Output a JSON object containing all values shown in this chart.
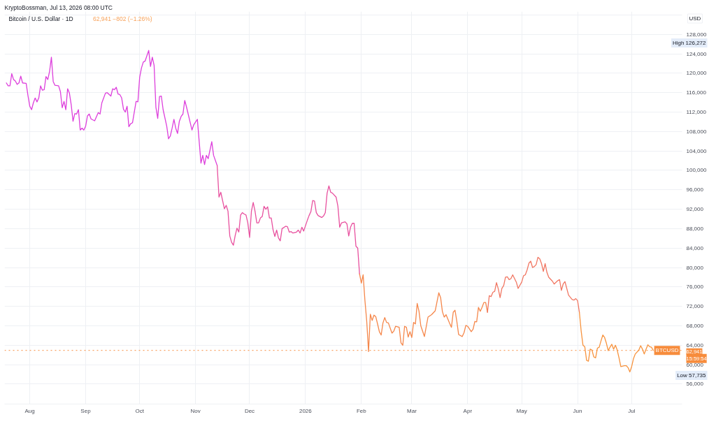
{
  "chart_data": {
    "type": "line",
    "title": "Bitcoin / U.S. Dollar · 1D",
    "subtitle": "62,941 −802 (−1.26%)",
    "ylabel": "USD",
    "annotations": [
      "KryptoBossman, Jul 13, 2026 08:00 UTC",
      "High 126,272",
      "Low 57,735",
      "62,941",
      "15:59:54"
    ],
    "xlim": [
      "2025-07-18",
      "2026-07-29"
    ],
    "xticks": [
      {
        "value": "2025-08-01",
        "label": "Aug"
      },
      {
        "value": "2025-09-01",
        "label": "Sep"
      },
      {
        "value": "2025-10-01",
        "label": "Oct"
      },
      {
        "value": "2025-11-01",
        "label": "Nov"
      },
      {
        "value": "2025-12-01",
        "label": "Dec"
      },
      {
        "value": "2026-01-01",
        "label": "2026"
      },
      {
        "value": "2026-02-01",
        "label": "Feb"
      },
      {
        "value": "2026-03-01",
        "label": "Mar"
      },
      {
        "value": "2026-04-01",
        "label": "Apr"
      },
      {
        "value": "2026-05-01",
        "label": "May"
      },
      {
        "value": "2026-06-01",
        "label": "Jun"
      },
      {
        "value": "2026-07-01",
        "label": "Jul"
      }
    ],
    "ylim": [
      51900,
      132700
    ],
    "yticks": [
      {
        "value": 56000,
        "label": "56,000"
      },
      {
        "value": 60000,
        "label": "60,000"
      },
      {
        "value": 64000,
        "label": "64,000"
      },
      {
        "value": 68000,
        "label": "68,000"
      },
      {
        "value": 72000,
        "label": "72,000"
      },
      {
        "value": 76000,
        "label": "76,000"
      },
      {
        "value": 80000,
        "label": "80,000"
      },
      {
        "value": 84000,
        "label": "84,000"
      },
      {
        "value": 88000,
        "label": "88,000"
      },
      {
        "value": 92000,
        "label": "92,000"
      },
      {
        "value": 96000,
        "label": "96,000"
      },
      {
        "value": 100000,
        "label": "100,000"
      },
      {
        "value": 104000,
        "label": "104,000"
      },
      {
        "value": 108000,
        "label": "108,000"
      },
      {
        "value": 112000,
        "label": "112,000"
      },
      {
        "value": 116000,
        "label": "116,000"
      },
      {
        "value": 120000,
        "label": "120,000"
      },
      {
        "value": 124000,
        "label": "124,000"
      },
      {
        "value": 128000,
        "label": "128,000"
      },
      {
        "value": 132000,
        "label": null
      }
    ],
    "grid": true,
    "ref_lines": [
      {
        "axis": "y",
        "value": 62941,
        "label": "BTCUSD",
        "color": "#f78c3c",
        "line_style": "dotted"
      }
    ],
    "series": [
      {
        "color": "#dd3fdc",
        "x": [
          "2025-07-19",
          "2025-07-20",
          "2025-07-21",
          "2025-07-22",
          "2025-07-23",
          "2025-07-24",
          "2025-07-25",
          "2025-07-26",
          "2025-07-27",
          "2025-07-28",
          "2025-07-30",
          "2025-07-31",
          "2025-08-01",
          "2025-08-02",
          "2025-08-03",
          "2025-08-04",
          "2025-08-05",
          "2025-08-06",
          "2025-08-07",
          "2025-08-08",
          "2025-08-09",
          "2025-08-10",
          "2025-08-11",
          "2025-08-12",
          "2025-08-13",
          "2025-08-14",
          "2025-08-15",
          "2025-08-17",
          "2025-08-18",
          "2025-08-19",
          "2025-08-20",
          "2025-08-21",
          "2025-08-22",
          "2025-08-23",
          "2025-08-24",
          "2025-08-25",
          "2025-08-26",
          "2025-08-27",
          "2025-08-28",
          "2025-08-29",
          "2025-08-30",
          "2025-08-31",
          "2025-09-01",
          "2025-09-02",
          "2025-09-03",
          "2025-09-04",
          "2025-09-06",
          "2025-09-08",
          "2025-09-09",
          "2025-09-10",
          "2025-09-12",
          "2025-09-13",
          "2025-09-15",
          "2025-09-16",
          "2025-09-17",
          "2025-09-18",
          "2025-09-19",
          "2025-09-20",
          "2025-09-21",
          "2025-09-22",
          "2025-09-23",
          "2025-09-24",
          "2025-09-25",
          "2025-09-26",
          "2025-09-27",
          "2025-09-29",
          "2025-09-30",
          "2025-10-01",
          "2025-10-02",
          "2025-10-03",
          "2025-10-04",
          "2025-10-06",
          "2025-10-07",
          "2025-10-08",
          "2025-10-09",
          "2025-10-10",
          "2025-10-11",
          "2025-10-12",
          "2025-10-13",
          "2025-10-14",
          "2025-10-16",
          "2025-10-17",
          "2025-10-18",
          "2025-10-19",
          "2025-10-20",
          "2025-10-21",
          "2025-10-22",
          "2025-10-23",
          "2025-10-24",
          "2025-10-25",
          "2025-10-26",
          "2025-10-27",
          "2025-10-29",
          "2025-10-30",
          "2025-10-31",
          "2025-11-02",
          "2025-11-04",
          "2025-11-05",
          "2025-11-06",
          "2025-11-07",
          "2025-11-08",
          "2025-11-10",
          "2025-11-11",
          "2025-11-13"
        ],
        "values": [
          118000,
          117400,
          117400,
          119900,
          118700,
          118400,
          117700,
          118000,
          119400,
          118000,
          117900,
          115400,
          113200,
          112500,
          113900,
          114900,
          114100,
          114900,
          117400,
          116500,
          116600,
          119300,
          118700,
          120400,
          123300,
          118300,
          117500,
          117400,
          116200,
          112900,
          114200,
          112500,
          116800,
          115900,
          113500,
          110100,
          111700,
          111600,
          112500,
          108300,
          108700,
          108300,
          109100,
          111200,
          111600,
          110600,
          110200,
          111900,
          111600,
          113900,
          115900,
          116000,
          115300,
          116800,
          116600,
          117100,
          115700,
          115600,
          114900,
          112600,
          112000,
          113200,
          109000,
          109600,
          109800,
          114200,
          114100,
          119200,
          121100,
          122300,
          122500,
          124700,
          121400,
          123300,
          121600,
          113000,
          110700,
          115200,
          115300,
          112500,
          109100,
          106500,
          107100,
          108700,
          110500,
          108700,
          107600,
          110100,
          111100,
          111600,
          114400,
          113000,
          109900,
          108300,
          109400,
          110500,
          101500,
          103100,
          101200,
          103100,
          102400,
          105900,
          103100,
          101000
        ]
      },
      {
        "color": "#e8519f",
        "x": [
          "2025-11-13",
          "2025-11-14",
          "2025-11-15",
          "2025-11-17",
          "2025-11-18",
          "2025-11-19",
          "2025-11-20",
          "2025-11-21",
          "2025-11-22",
          "2025-11-23",
          "2025-11-24",
          "2025-11-25",
          "2025-11-26",
          "2025-11-27",
          "2025-11-28",
          "2025-11-29",
          "2025-11-30",
          "2025-12-01",
          "2025-12-02",
          "2025-12-03",
          "2025-12-04",
          "2025-12-05",
          "2025-12-06",
          "2025-12-07",
          "2025-12-08",
          "2025-12-09",
          "2025-12-10",
          "2025-12-11",
          "2025-12-12",
          "2025-12-13",
          "2025-12-14",
          "2025-12-15",
          "2025-12-16",
          "2025-12-17",
          "2025-12-18",
          "2025-12-19",
          "2025-12-21",
          "2025-12-22",
          "2025-12-23",
          "2025-12-24",
          "2025-12-25",
          "2025-12-27",
          "2025-12-28",
          "2025-12-29",
          "2025-12-30",
          "2025-12-31",
          "2026-01-02",
          "2026-01-03",
          "2026-01-04",
          "2026-01-05",
          "2026-01-06",
          "2026-01-07",
          "2026-01-08",
          "2026-01-10",
          "2026-01-11",
          "2026-01-12",
          "2026-01-13",
          "2026-01-14",
          "2026-01-15",
          "2026-01-16",
          "2026-01-18",
          "2026-01-19",
          "2026-01-20",
          "2026-01-21",
          "2026-01-23",
          "2026-01-24",
          "2026-01-25",
          "2026-01-26",
          "2026-01-27",
          "2026-01-28",
          "2026-01-29",
          "2026-01-30",
          "2026-01-31"
        ],
        "values": [
          101000,
          94500,
          95500,
          92100,
          92800,
          91600,
          86500,
          85200,
          84600,
          86600,
          88100,
          87300,
          90800,
          91300,
          91000,
          90800,
          89200,
          86200,
          91600,
          93400,
          91600,
          89200,
          89200,
          90200,
          90500,
          92600,
          92000,
          92500,
          90200,
          90200,
          87800,
          86400,
          87700,
          86100,
          85500,
          88000,
          88500,
          88400,
          87300,
          87400,
          87100,
          87300,
          87700,
          87100,
          88300,
          87500,
          89700,
          90700,
          91500,
          93800,
          93700,
          91300,
          90700,
          90300,
          90600,
          91300,
          95300,
          96800,
          95500,
          95300,
          94500,
          92600,
          88300,
          89200,
          89400,
          89000,
          86500,
          88300,
          89100,
          89100,
          84400,
          84000,
          78700
        ]
      },
      {
        "color": "#f5874b",
        "x": [
          "2026-01-31",
          "2026-02-01",
          "2026-02-02",
          "2026-02-03",
          "2026-02-04",
          "2026-02-05",
          "2026-02-06",
          "2026-02-07",
          "2026-02-08",
          "2026-02-09",
          "2026-02-10",
          "2026-02-11",
          "2026-02-12",
          "2026-02-13",
          "2026-02-14",
          "2026-02-15",
          "2026-02-16",
          "2026-02-18",
          "2026-02-19",
          "2026-02-20",
          "2026-02-22",
          "2026-02-23",
          "2026-02-24",
          "2026-02-25",
          "2026-02-26",
          "2026-02-27",
          "2026-02-28",
          "2026-03-01",
          "2026-03-02",
          "2026-03-03",
          "2026-03-04",
          "2026-03-05",
          "2026-03-06",
          "2026-03-08",
          "2026-03-10",
          "2026-03-12",
          "2026-03-14",
          "2026-03-16",
          "2026-03-17",
          "2026-03-18",
          "2026-03-19",
          "2026-03-20",
          "2026-03-22",
          "2026-03-23",
          "2026-03-24",
          "2026-03-25",
          "2026-03-26",
          "2026-03-27",
          "2026-03-29",
          "2026-03-30",
          "2026-03-31",
          "2026-04-01",
          "2026-04-03",
          "2026-04-04",
          "2026-04-05",
          "2026-04-06",
          "2026-04-07",
          "2026-04-08",
          "2026-04-09",
          "2026-04-10",
          "2026-04-11",
          "2026-04-12"
        ],
        "values": [
          78700,
          76800,
          78500,
          73200,
          68900,
          62700,
          70400,
          69100,
          70200,
          69900,
          68400,
          66800,
          66100,
          68600,
          69700,
          68700,
          68600,
          66500,
          66900,
          67900,
          67700,
          64500,
          64000,
          67900,
          67700,
          65700,
          66800,
          65600,
          68700,
          68400,
          72600,
          71000,
          68000,
          65800,
          69800,
          70300,
          71100,
          74800,
          73800,
          70900,
          69800,
          70300,
          68500,
          67700,
          70800,
          71200,
          68900,
          66200,
          65800,
          66600,
          68100,
          67900,
          66800,
          67300,
          68900,
          68800,
          71800,
          71000,
          71800,
          72800,
          72800,
          70800
        ]
      },
      {
        "color": "#f17763",
        "x": [
          "2026-04-12",
          "2026-04-13",
          "2026-04-14",
          "2026-04-15",
          "2026-04-16",
          "2026-04-17",
          "2026-04-18",
          "2026-04-19",
          "2026-04-20",
          "2026-04-21",
          "2026-04-22",
          "2026-04-23",
          "2026-04-24",
          "2026-04-25",
          "2026-04-26",
          "2026-04-28",
          "2026-04-29",
          "2026-05-01",
          "2026-05-02",
          "2026-05-03",
          "2026-05-04",
          "2026-05-05",
          "2026-05-06",
          "2026-05-07",
          "2026-05-08",
          "2026-05-09",
          "2026-05-10",
          "2026-05-11",
          "2026-05-12",
          "2026-05-13",
          "2026-05-14",
          "2026-05-15",
          "2026-05-16",
          "2026-05-18",
          "2026-05-19",
          "2026-05-21",
          "2026-05-22",
          "2026-05-23",
          "2026-05-24",
          "2026-05-25",
          "2026-05-27",
          "2026-05-29",
          "2026-05-30",
          "2026-05-31",
          "2026-06-01",
          "2026-06-02"
        ],
        "values": [
          70800,
          74200,
          74000,
          74900,
          75100,
          76900,
          75600,
          73800,
          75700,
          76300,
          78000,
          78100,
          77500,
          77700,
          78500,
          77000,
          75700,
          77000,
          78300,
          78500,
          79500,
          80900,
          81300,
          80000,
          80200,
          80600,
          82100,
          81800,
          80800,
          79200,
          80800,
          79000,
          78000,
          77200,
          76600,
          77300,
          77500,
          75300,
          76600,
          77100,
          74300,
          73400,
          73300,
          73600,
          73200,
          70800
        ]
      },
      {
        "color": "#f7933e",
        "x": [
          "2026-06-02",
          "2026-06-03",
          "2026-06-04",
          "2026-06-05",
          "2026-06-06",
          "2026-06-07",
          "2026-06-08",
          "2026-06-09",
          "2026-06-10",
          "2026-06-11",
          "2026-06-12",
          "2026-06-13",
          "2026-06-14",
          "2026-06-15",
          "2026-06-16",
          "2026-06-17",
          "2026-06-18",
          "2026-06-19",
          "2026-06-20",
          "2026-06-21",
          "2026-06-22",
          "2026-06-23",
          "2026-06-24",
          "2026-06-25",
          "2026-06-27",
          "2026-06-28",
          "2026-06-29",
          "2026-06-30",
          "2026-07-01",
          "2026-07-02",
          "2026-07-03",
          "2026-07-05",
          "2026-07-06",
          "2026-07-07",
          "2026-07-08",
          "2026-07-09",
          "2026-07-10",
          "2026-07-11",
          "2026-07-12",
          "2026-07-13"
        ],
        "values": [
          70800,
          66900,
          64000,
          63700,
          60900,
          60700,
          63200,
          63000,
          61600,
          61400,
          63400,
          63600,
          64900,
          66100,
          65600,
          64400,
          62900,
          63600,
          64200,
          63200,
          64000,
          63000,
          61400,
          59600,
          59800,
          59800,
          59400,
          58500,
          59600,
          61200,
          62200,
          63000,
          63900,
          63200,
          62200,
          63200,
          64100,
          63700,
          63600,
          62941
        ]
      }
    ]
  }
}
